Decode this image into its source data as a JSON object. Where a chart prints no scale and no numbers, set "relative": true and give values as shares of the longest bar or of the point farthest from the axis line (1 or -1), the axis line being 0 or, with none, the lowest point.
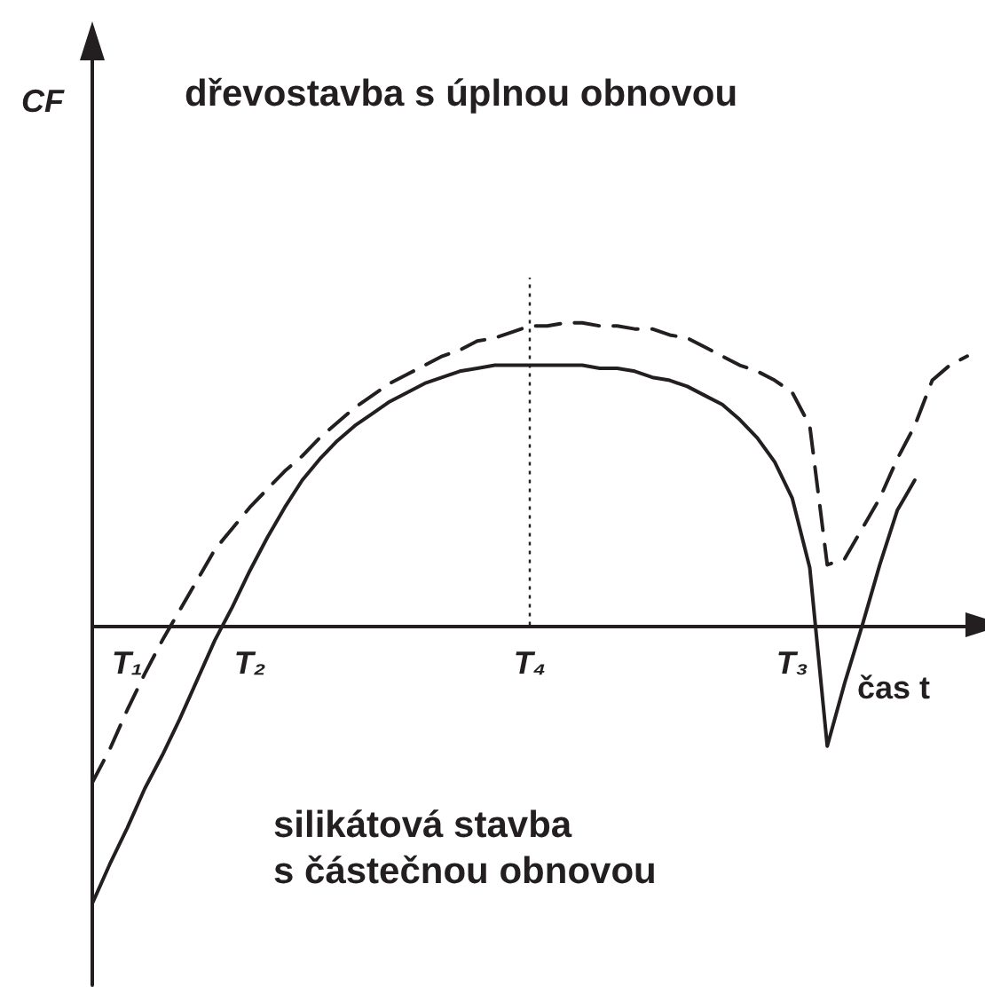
{
  "chart_data": {
    "type": "line",
    "relative": true,
    "xlabel": "čas t",
    "annotations": [
      "dřevostavba s úplnou obnovou",
      "silikátová stavba\ns částečnou obnovou",
      "CF"
    ],
    "categories": [
      null,
      null,
      "T₁",
      null,
      null,
      null,
      null,
      null,
      null,
      "T₂",
      null,
      null,
      null,
      null,
      null,
      null,
      null,
      null,
      null,
      null,
      null,
      null,
      null,
      null,
      null,
      "T₄",
      null,
      null,
      null,
      null,
      null,
      null,
      null,
      null,
      null,
      null,
      null,
      null,
      null,
      null,
      "T₃",
      null,
      null,
      null,
      null,
      null,
      null,
      null,
      null,
      null,
      null
    ],
    "series": [
      {
        "color": "#231f20",
        "line_style": "dashed",
        "values": [
          -0.52,
          -0.41,
          -0.28,
          -0.16,
          -0.05,
          0.05,
          0.15,
          0.25,
          0.32,
          0.39,
          0.45,
          0.51,
          0.56,
          0.62,
          0.67,
          0.72,
          0.76,
          0.8,
          0.83,
          0.86,
          0.89,
          0.91,
          0.94,
          0.95,
          0.97,
          0.99,
          0.99,
          1,
          1,
          0.99,
          0.99,
          0.98,
          0.98,
          0.96,
          0.95,
          0.92,
          0.89,
          0.86,
          0.84,
          0.81,
          0.77,
          0.66,
          0.2,
          0.22,
          0.32,
          0.42,
          0.55,
          0.66,
          0.81,
          0.86,
          0.89
        ]
      },
      {
        "color": "#231f20",
        "line_style": "solid",
        "values": [
          -0.92,
          -0.79,
          -0.67,
          -0.54,
          -0.43,
          -0.31,
          -0.18,
          -0.05,
          0.06,
          0.18,
          0.29,
          0.39,
          0.48,
          0.55,
          0.61,
          0.66,
          0.7,
          0.74,
          0.77,
          0.8,
          0.82,
          0.84,
          0.85,
          0.86,
          0.86,
          0.86,
          0.86,
          0.86,
          0.86,
          0.85,
          0.85,
          0.84,
          0.82,
          0.81,
          0.79,
          0.76,
          0.73,
          0.68,
          0.62,
          0.54,
          0.42,
          0.19,
          -0.4,
          -0.19,
          0,
          0.2,
          0.38,
          0.48,
          null,
          null,
          null
        ]
      }
    ],
    "ref_lines": [
      {
        "axis": "x",
        "value": "T₄",
        "line_style": "dotted",
        "color": "#231f20"
      }
    ],
    "marker": "none",
    "grid": false
  }
}
